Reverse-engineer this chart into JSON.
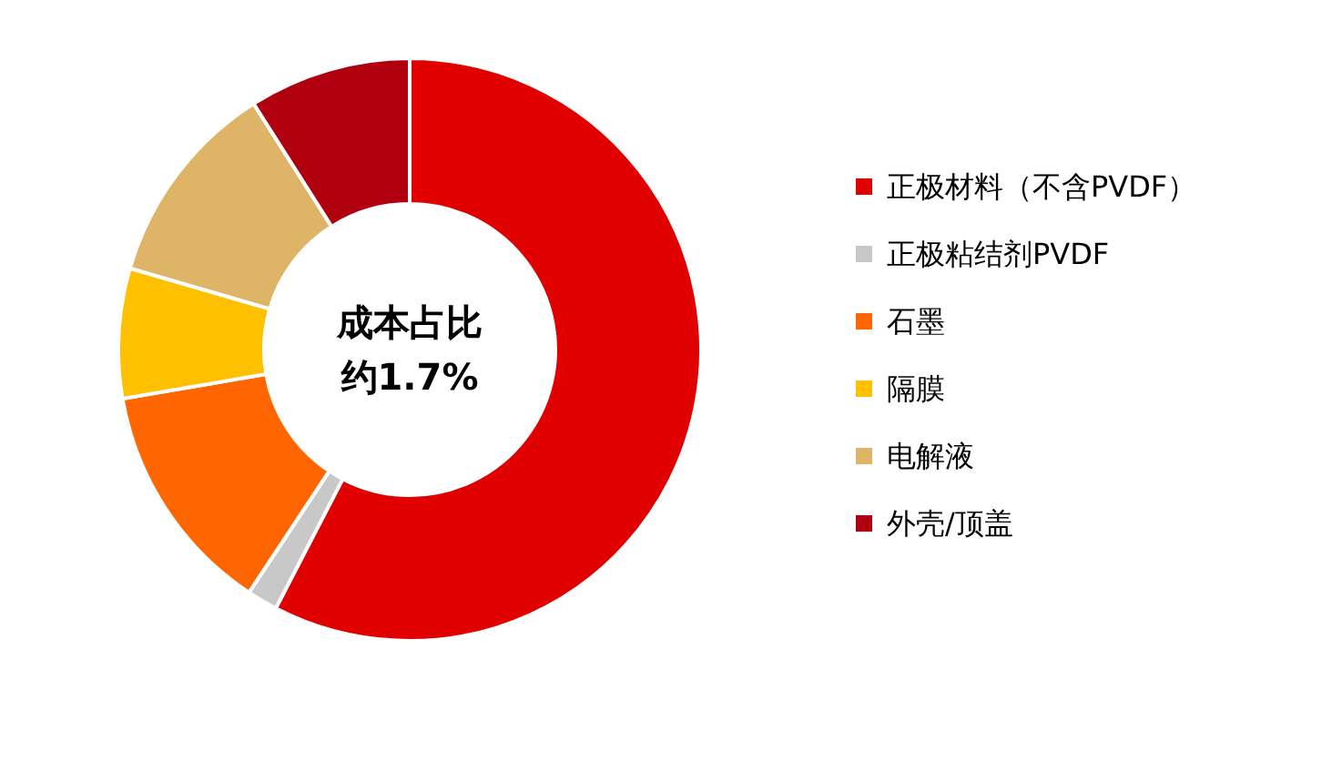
{
  "chart_data": {
    "type": "donut",
    "categories": [
      "正极材料（不含PVDF）",
      "正极粘结剂PVDF",
      "石墨",
      "隔膜",
      "电解液",
      "外壳/顶盖"
    ],
    "values": [
      57.6,
      1.7,
      13,
      7.2,
      11.5,
      9
    ],
    "colors": [
      "#e00000",
      "#c8c8c8",
      "#ff6600",
      "#ffc000",
      "#deb466",
      "#b00010"
    ],
    "annotations": [
      "成本占比",
      "约1.7%"
    ],
    "legend": "right"
  }
}
